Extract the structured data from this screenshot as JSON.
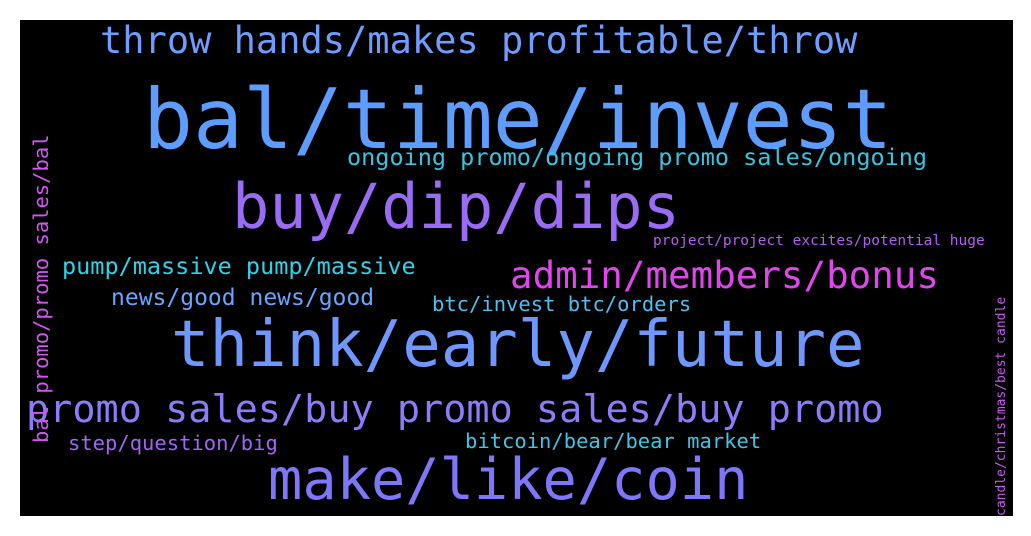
{
  "wordcloud": {
    "background_color": "#000000",
    "words": [
      {
        "text": "bal/time/invest",
        "color": "#5C9DFF"
      },
      {
        "text": "throw hands/makes profitable/throw",
        "color": "#6F9CFF"
      },
      {
        "text": "ongoing promo/ongoing promo sales/ongoing",
        "color": "#3AC3E0"
      },
      {
        "text": "buy/dip/dips",
        "color": "#9A6BF4"
      },
      {
        "text": "project/project excites/potential huge",
        "color": "#B45DF3"
      },
      {
        "text": "pump/massive pump/massive",
        "color": "#2ED2EA"
      },
      {
        "text": "admin/members/bonus",
        "color": "#E146EE"
      },
      {
        "text": "news/good news/good",
        "color": "#66A6FF"
      },
      {
        "text": "btc/invest btc/orders",
        "color": "#4DBEF2"
      },
      {
        "text": "think/early/future",
        "color": "#6E97FF"
      },
      {
        "text": "promo sales/buy promo sales/buy promo",
        "color": "#8B7DFA"
      },
      {
        "text": "step/question/big",
        "color": "#A264F4"
      },
      {
        "text": "bitcoin/bear/bear market",
        "color": "#3EC6E6"
      },
      {
        "text": "make/like/coin",
        "color": "#7F77FB"
      },
      {
        "text": "bal promo/promo sales/bal",
        "color": "#D255F4"
      },
      {
        "text": "candle/christmas/best candle",
        "color": "#CB58F2"
      }
    ]
  }
}
